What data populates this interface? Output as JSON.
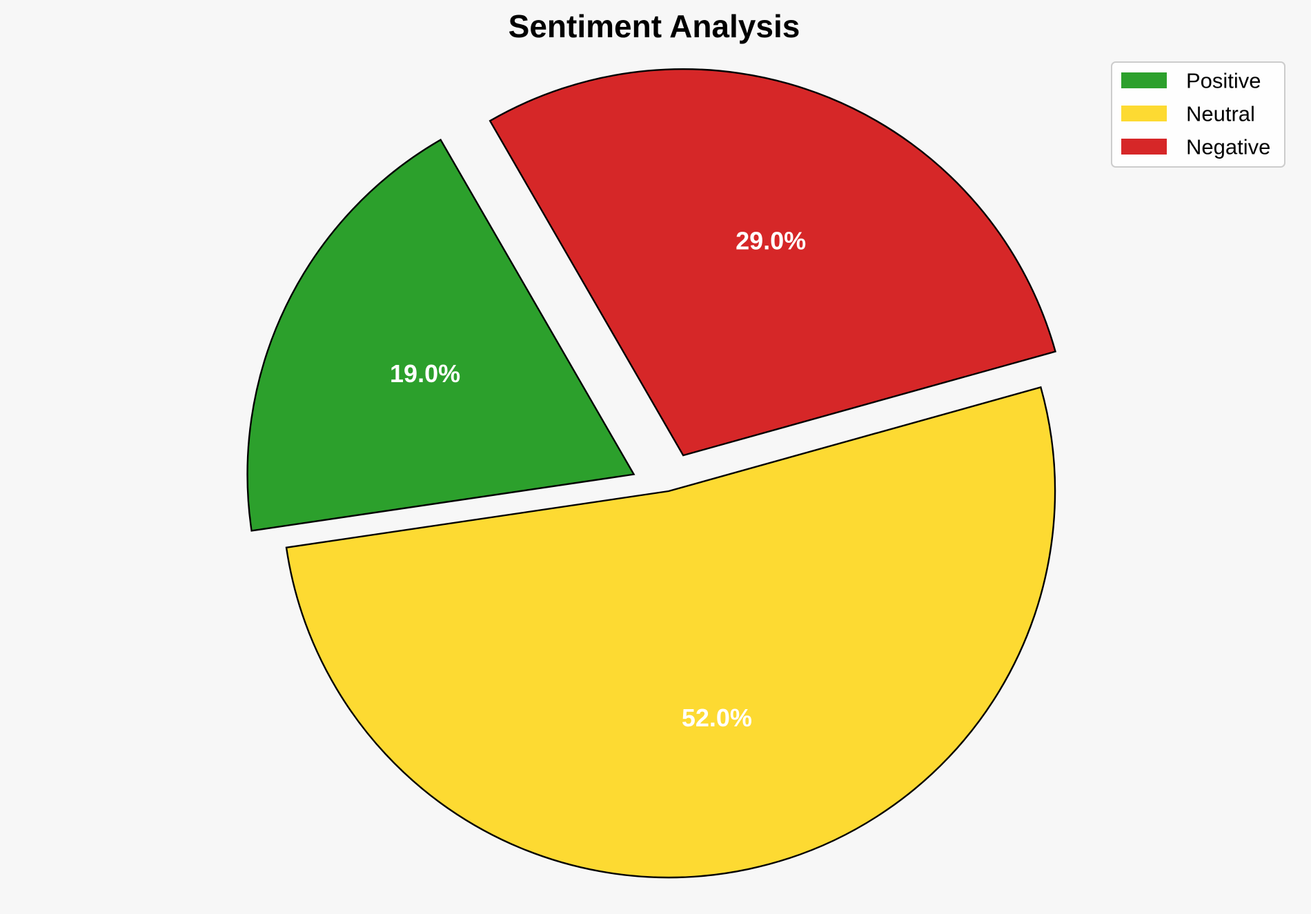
{
  "chart_data": {
    "type": "pie",
    "title": "Sentiment Analysis",
    "categories": [
      "Positive",
      "Neutral",
      "Negative"
    ],
    "values": [
      19.0,
      52.0,
      29.0
    ],
    "labels": [
      "19.0%",
      "52.0%",
      "29.0%"
    ],
    "colors": [
      "#2ca02c",
      "#fdda32",
      "#d62728"
    ],
    "edge_color": "#000000",
    "exploded": [
      true,
      false,
      true
    ],
    "direction": "counterclockwise",
    "legend": {
      "placement": "top-right",
      "entries": [
        "Positive",
        "Neutral",
        "Negative"
      ]
    }
  }
}
